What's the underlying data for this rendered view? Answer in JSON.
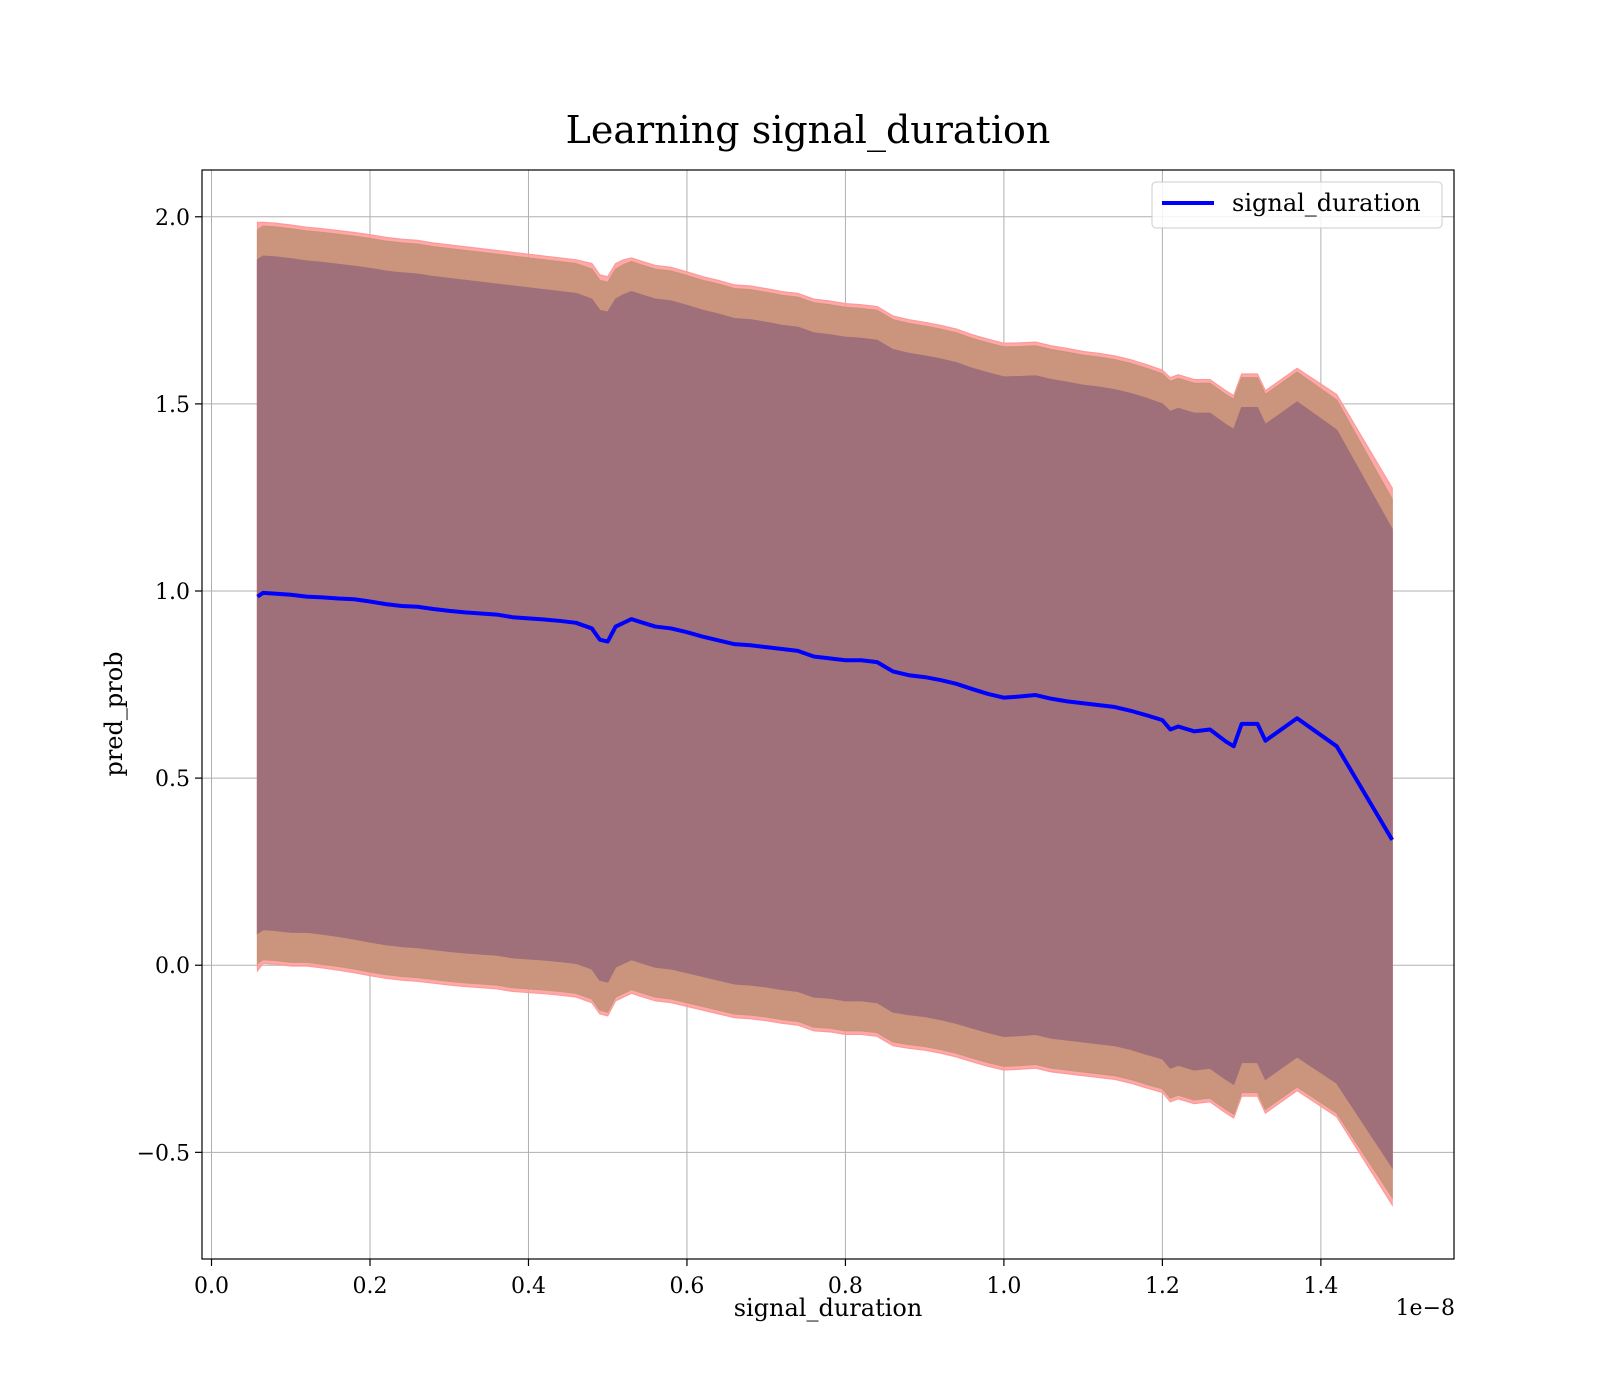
{
  "chart_data": {
    "type": "area",
    "title": "Learning signal_duration",
    "xlabel": "signal_duration",
    "ylabel": "pred_prob",
    "x_offset_label": "1e−8",
    "xlim": [
      -0.012,
      1.568
    ],
    "ylim": [
      -0.785,
      2.125
    ],
    "x_ticks": [
      0.0,
      0.2,
      0.4,
      0.6,
      0.8,
      1.0,
      1.2,
      1.4
    ],
    "x_tick_labels": [
      "0.0",
      "0.2",
      "0.4",
      "0.6",
      "0.8",
      "1.0",
      "1.2",
      "1.4"
    ],
    "y_ticks": [
      -0.5,
      0.0,
      0.5,
      1.0,
      1.5,
      2.0
    ],
    "y_tick_labels": [
      "−0.5",
      "0.0",
      "0.5",
      "1.0",
      "1.5",
      "2.0"
    ],
    "grid": true,
    "legend_position": "top-right",
    "colors": {
      "line": "#0000ff",
      "outer_band": "#ff9999",
      "middle_band": "#c8937a",
      "inner_band": "#a0707a",
      "grid": "#b0b0b0"
    },
    "series": [
      {
        "name": "signal_duration",
        "x": [
          0.058,
          0.065,
          0.08,
          0.1,
          0.12,
          0.14,
          0.16,
          0.18,
          0.2,
          0.22,
          0.24,
          0.26,
          0.28,
          0.3,
          0.32,
          0.34,
          0.36,
          0.38,
          0.4,
          0.42,
          0.44,
          0.46,
          0.48,
          0.49,
          0.5,
          0.51,
          0.52,
          0.53,
          0.54,
          0.56,
          0.58,
          0.6,
          0.62,
          0.64,
          0.66,
          0.68,
          0.7,
          0.72,
          0.74,
          0.76,
          0.78,
          0.8,
          0.82,
          0.84,
          0.86,
          0.88,
          0.9,
          0.92,
          0.94,
          0.96,
          0.98,
          1.0,
          1.02,
          1.04,
          1.06,
          1.08,
          1.1,
          1.12,
          1.14,
          1.16,
          1.18,
          1.2,
          1.21,
          1.22,
          1.24,
          1.26,
          1.28,
          1.29,
          1.3,
          1.32,
          1.33,
          1.37,
          1.42,
          1.49
        ],
        "values": [
          0.985,
          0.995,
          0.993,
          0.99,
          0.985,
          0.983,
          0.98,
          0.978,
          0.972,
          0.965,
          0.96,
          0.958,
          0.952,
          0.947,
          0.943,
          0.94,
          0.937,
          0.93,
          0.927,
          0.924,
          0.92,
          0.915,
          0.9,
          0.87,
          0.865,
          0.905,
          0.915,
          0.925,
          0.918,
          0.905,
          0.9,
          0.89,
          0.878,
          0.868,
          0.858,
          0.855,
          0.85,
          0.845,
          0.84,
          0.825,
          0.82,
          0.815,
          0.815,
          0.81,
          0.785,
          0.775,
          0.77,
          0.762,
          0.752,
          0.738,
          0.725,
          0.715,
          0.718,
          0.722,
          0.712,
          0.705,
          0.7,
          0.695,
          0.69,
          0.68,
          0.668,
          0.655,
          0.63,
          0.638,
          0.625,
          0.63,
          0.598,
          0.585,
          0.645,
          0.645,
          0.6,
          0.66,
          0.585,
          0.335
        ]
      }
    ],
    "bands": [
      {
        "layer": "outer",
        "upper": [
          1.985,
          1.985,
          1.983,
          1.978,
          1.972,
          1.968,
          1.963,
          1.958,
          1.952,
          1.945,
          1.94,
          1.937,
          1.93,
          1.925,
          1.92,
          1.915,
          1.91,
          1.905,
          1.9,
          1.895,
          1.89,
          1.885,
          1.875,
          1.845,
          1.84,
          1.875,
          1.885,
          1.89,
          1.883,
          1.87,
          1.865,
          1.853,
          1.84,
          1.83,
          1.818,
          1.815,
          1.808,
          1.8,
          1.795,
          1.78,
          1.775,
          1.768,
          1.765,
          1.76,
          1.735,
          1.725,
          1.718,
          1.71,
          1.7,
          1.685,
          1.673,
          1.662,
          1.663,
          1.665,
          1.655,
          1.648,
          1.64,
          1.635,
          1.628,
          1.618,
          1.605,
          1.59,
          1.57,
          1.578,
          1.565,
          1.565,
          1.535,
          1.522,
          1.58,
          1.58,
          1.535,
          1.595,
          1.525,
          1.275
        ],
        "lower": [
          -0.015,
          0.005,
          0.003,
          -0.002,
          -0.002,
          -0.007,
          -0.013,
          -0.02,
          -0.028,
          -0.035,
          -0.04,
          -0.043,
          -0.048,
          -0.053,
          -0.057,
          -0.06,
          -0.063,
          -0.07,
          -0.073,
          -0.076,
          -0.08,
          -0.085,
          -0.1,
          -0.13,
          -0.135,
          -0.095,
          -0.085,
          -0.075,
          -0.082,
          -0.095,
          -0.1,
          -0.11,
          -0.12,
          -0.13,
          -0.14,
          -0.143,
          -0.148,
          -0.155,
          -0.16,
          -0.175,
          -0.178,
          -0.185,
          -0.185,
          -0.19,
          -0.215,
          -0.222,
          -0.227,
          -0.235,
          -0.245,
          -0.258,
          -0.27,
          -0.28,
          -0.278,
          -0.275,
          -0.285,
          -0.29,
          -0.295,
          -0.3,
          -0.305,
          -0.315,
          -0.328,
          -0.34,
          -0.365,
          -0.357,
          -0.37,
          -0.365,
          -0.395,
          -0.408,
          -0.35,
          -0.35,
          -0.395,
          -0.335,
          -0.405,
          -0.64
        ]
      },
      {
        "layer": "middle",
        "upper": [
          1.965,
          1.975,
          1.973,
          1.968,
          1.962,
          1.958,
          1.953,
          1.948,
          1.942,
          1.935,
          1.93,
          1.927,
          1.92,
          1.915,
          1.91,
          1.905,
          1.9,
          1.895,
          1.89,
          1.885,
          1.88,
          1.875,
          1.86,
          1.83,
          1.825,
          1.86,
          1.872,
          1.88,
          1.873,
          1.86,
          1.855,
          1.843,
          1.83,
          1.82,
          1.808,
          1.805,
          1.798,
          1.79,
          1.785,
          1.77,
          1.765,
          1.758,
          1.755,
          1.75,
          1.725,
          1.715,
          1.708,
          1.7,
          1.69,
          1.675,
          1.663,
          1.652,
          1.653,
          1.655,
          1.645,
          1.638,
          1.63,
          1.625,
          1.618,
          1.608,
          1.595,
          1.58,
          1.56,
          1.568,
          1.555,
          1.555,
          1.525,
          1.512,
          1.57,
          1.57,
          1.525,
          1.585,
          1.51,
          1.245
        ],
        "lower": [
          0.005,
          0.015,
          0.013,
          0.008,
          0.008,
          0.003,
          -0.003,
          -0.01,
          -0.018,
          -0.025,
          -0.03,
          -0.033,
          -0.038,
          -0.043,
          -0.047,
          -0.05,
          -0.053,
          -0.06,
          -0.063,
          -0.066,
          -0.07,
          -0.075,
          -0.09,
          -0.12,
          -0.125,
          -0.085,
          -0.075,
          -0.065,
          -0.072,
          -0.085,
          -0.09,
          -0.1,
          -0.11,
          -0.12,
          -0.13,
          -0.133,
          -0.138,
          -0.145,
          -0.15,
          -0.165,
          -0.168,
          -0.175,
          -0.175,
          -0.18,
          -0.205,
          -0.212,
          -0.217,
          -0.225,
          -0.235,
          -0.248,
          -0.26,
          -0.27,
          -0.268,
          -0.265,
          -0.275,
          -0.28,
          -0.285,
          -0.29,
          -0.295,
          -0.305,
          -0.318,
          -0.33,
          -0.355,
          -0.347,
          -0.36,
          -0.355,
          -0.385,
          -0.398,
          -0.34,
          -0.34,
          -0.385,
          -0.325,
          -0.395,
          -0.62
        ]
      },
      {
        "layer": "inner",
        "upper": [
          1.885,
          1.895,
          1.893,
          1.888,
          1.882,
          1.878,
          1.873,
          1.868,
          1.862,
          1.855,
          1.85,
          1.847,
          1.84,
          1.835,
          1.83,
          1.825,
          1.82,
          1.815,
          1.81,
          1.805,
          1.8,
          1.795,
          1.78,
          1.75,
          1.745,
          1.78,
          1.792,
          1.8,
          1.793,
          1.78,
          1.775,
          1.763,
          1.75,
          1.74,
          1.728,
          1.725,
          1.718,
          1.71,
          1.705,
          1.69,
          1.685,
          1.678,
          1.675,
          1.67,
          1.645,
          1.635,
          1.628,
          1.62,
          1.61,
          1.595,
          1.583,
          1.572,
          1.573,
          1.575,
          1.565,
          1.558,
          1.55,
          1.545,
          1.538,
          1.528,
          1.515,
          1.5,
          1.48,
          1.488,
          1.475,
          1.475,
          1.445,
          1.432,
          1.49,
          1.49,
          1.445,
          1.505,
          1.43,
          1.165
        ],
        "lower": [
          0.085,
          0.095,
          0.093,
          0.088,
          0.088,
          0.083,
          0.077,
          0.07,
          0.062,
          0.055,
          0.05,
          0.047,
          0.042,
          0.037,
          0.033,
          0.03,
          0.027,
          0.02,
          0.017,
          0.014,
          0.01,
          0.005,
          -0.01,
          -0.04,
          -0.045,
          -0.005,
          0.005,
          0.015,
          0.008,
          -0.005,
          -0.01,
          -0.02,
          -0.03,
          -0.04,
          -0.05,
          -0.053,
          -0.058,
          -0.065,
          -0.07,
          -0.085,
          -0.088,
          -0.095,
          -0.095,
          -0.1,
          -0.125,
          -0.132,
          -0.137,
          -0.145,
          -0.155,
          -0.168,
          -0.18,
          -0.19,
          -0.188,
          -0.185,
          -0.195,
          -0.2,
          -0.205,
          -0.21,
          -0.215,
          -0.225,
          -0.238,
          -0.25,
          -0.275,
          -0.267,
          -0.28,
          -0.275,
          -0.305,
          -0.318,
          -0.26,
          -0.26,
          -0.305,
          -0.245,
          -0.315,
          -0.54
        ]
      }
    ]
  }
}
